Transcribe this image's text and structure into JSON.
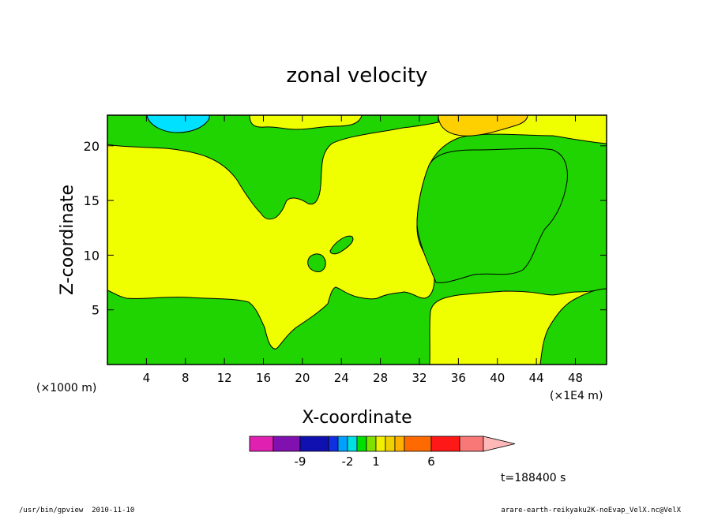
{
  "chart_data": {
    "type": "heatmap",
    "title": "zonal velocity",
    "xlabel": "X-coordinate",
    "ylabel": "Z-coordinate",
    "x_unit_left": "(×1000 m)",
    "x_unit_right": "(×1E4 m)",
    "xticks": [
      4,
      8,
      12,
      16,
      20,
      24,
      28,
      32,
      36,
      40,
      44,
      48
    ],
    "yticks": [
      5,
      10,
      15,
      20
    ],
    "xlim": [
      0,
      51.2
    ],
    "ylim": [
      0,
      22.8
    ],
    "colorbar": {
      "colors": [
        "#e020b0",
        "#8010b0",
        "#1010b0",
        "#1030e0",
        "#00a0ff",
        "#00e0e0",
        "#00e000",
        "#80e000",
        "#f0f000",
        "#f0d000",
        "#ffb000",
        "#ff6a00",
        "#ff1818",
        "#f87878",
        "#ffb8b8"
      ],
      "labels": [
        {
          "text": "-9",
          "after_box": 1
        },
        {
          "text": "-2",
          "after_box": 4
        },
        {
          "text": "1",
          "after_box": 7
        },
        {
          "text": "6",
          "after_box": 11
        }
      ]
    },
    "time_label": "t=188400 s",
    "regions": [
      {
        "name": "green",
        "color": "#1fd400"
      },
      {
        "name": "yellow",
        "color": "#efff00"
      },
      {
        "name": "cyan",
        "color": "#00e0ff"
      },
      {
        "name": "orange",
        "color": "#ffd000"
      }
    ]
  },
  "footer": {
    "left": "/usr/bin/gpview  2010-11-10",
    "right": "arare-earth-reikyaku2K-noEvap_VelX.nc@VelX"
  }
}
